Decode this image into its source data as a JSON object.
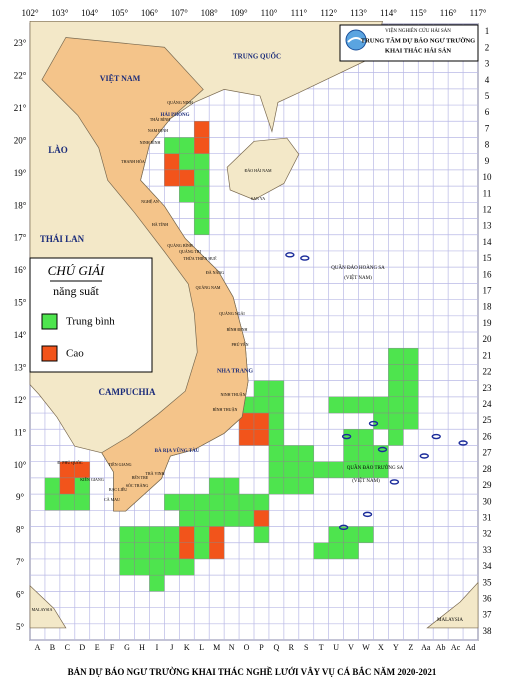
{
  "header": {
    "institute": "VIỆN NGHIÊN CỨU HẢI SẢN",
    "center_line1": "TRUNG TÂM DỰ BÁO NGƯ TRƯỜNG",
    "center_line2": "KHAI THÁC HẢI SẢN"
  },
  "title": "BẢN DỰ BÁO NGƯ TRƯỜNG KHAI THÁC NGHỀ LƯỚI VÂY VỤ CÁ BẮC NĂM 2020-2021",
  "longitudes": [
    "102°",
    "103°",
    "104°",
    "105°",
    "106°",
    "107°",
    "108°",
    "109°",
    "110°",
    "111°",
    "112°",
    "113°",
    "114°",
    "115°",
    "116°",
    "117°"
  ],
  "latitudes": [
    "23°",
    "22°",
    "21°",
    "20°",
    "19°",
    "18°",
    "17°",
    "16°",
    "15°",
    "14°",
    "13°",
    "12°",
    "11°",
    "10°",
    "9°",
    "8°",
    "7°",
    "6°",
    "5°"
  ],
  "columns": [
    "A",
    "B",
    "C",
    "D",
    "E",
    "F",
    "G",
    "H",
    "I",
    "J",
    "K",
    "L",
    "M",
    "N",
    "O",
    "P",
    "Q",
    "R",
    "S",
    "T",
    "U",
    "V",
    "W",
    "X",
    "Y",
    "Z",
    "Aa",
    "Ab",
    "Ac",
    "Ad"
  ],
  "rows": [
    1,
    2,
    3,
    4,
    5,
    6,
    7,
    8,
    9,
    10,
    11,
    12,
    13,
    14,
    15,
    16,
    17,
    18,
    19,
    20,
    21,
    22,
    23,
    24,
    25,
    26,
    27,
    28,
    29,
    30,
    31,
    32,
    33,
    34,
    35,
    36,
    37,
    38
  ],
  "legend": {
    "title": "CHÚ GIẢI",
    "subtitle": "năng suất",
    "items": [
      {
        "name": "Trung bình",
        "color": "#4ee44e"
      },
      {
        "name": "Cao",
        "color": "#f2541b"
      }
    ]
  },
  "places": [
    "TRUNG QUỐC",
    "VIỆT NAM",
    "LÀO",
    "THÁI LAN",
    "CAMPUCHIA",
    "HẢI PHÒNG",
    "NHA TRANG",
    "BÀ RỊA VŨNG TÀU",
    "ĐẢO HẢI NAM",
    "SAN YA",
    "QUẦN ĐẢO HOÀNG SA",
    "(VIỆT NAM)",
    "QUẦN ĐẢO TRƯỜNG SA",
    "(VIỆT NAM)",
    "MALAYSIA",
    "MALAYSIA",
    "QUẢNG NINH",
    "THÁI BÌNH",
    "NAM ĐỊNH",
    "NINH BÌNH",
    "THANH HÓA",
    "NGHỆ AN",
    "HÀ TĨNH",
    "QUẢNG BÌNH",
    "QUẢNG TRỊ",
    "THỪA THIÊN HUẾ",
    "ĐÀ NẴNG",
    "QUẢNG NAM",
    "QUẢNG NGÃI",
    "BÌNH ĐỊNH",
    "PHÚ YÊN",
    "NINH THUẬN",
    "BÌNH THUẬN",
    "TIỀN GIANG",
    "BẾN TRE",
    "TRÀ VINH",
    "SÓC TRĂNG",
    "BẠC LIÊU",
    "CÀ MAU",
    "KIÊN GIANG",
    "Đ. PHÚ QUỐC"
  ]
}
